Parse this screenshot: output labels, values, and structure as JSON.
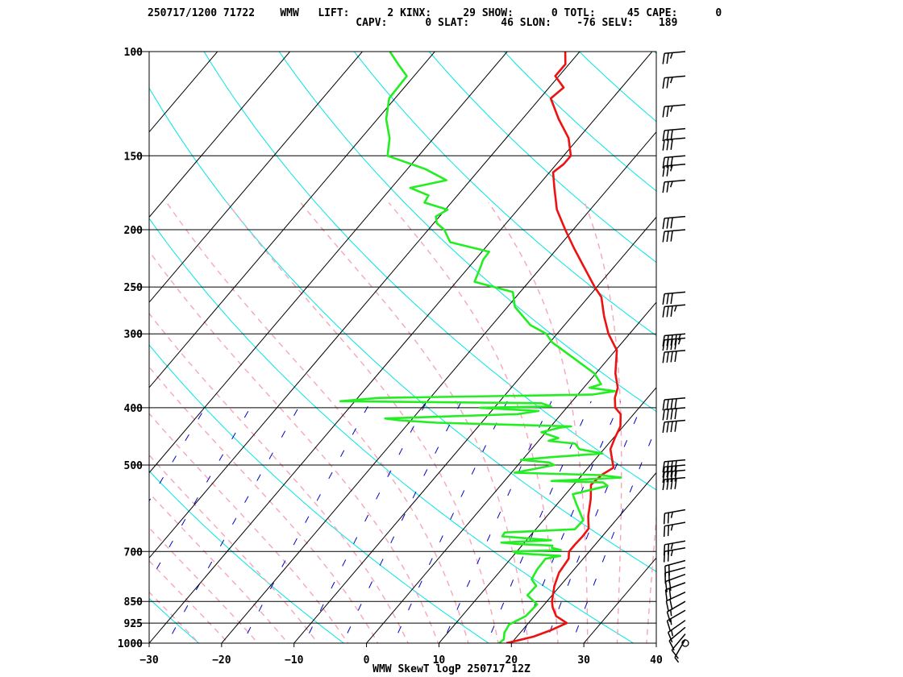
{
  "header": {
    "line1": "250717/1200 71722    WMW   LIFT:      2 KINX:     29 SHOW:      0 TOTL:     45 CAPE:      0",
    "line2": "                                 CAPV:      0 SLAT:     46 SLON:    -76 SELV:    189"
  },
  "colors": {
    "temperature": "#ee1111",
    "dewpoint": "#22ee22",
    "isotherm_skewed": "#000000",
    "dry_adiabat": "#00e5e5",
    "moist_adiabat": "#f5a6b8",
    "mixing_ratio": "#0000c8",
    "isobar": "#000000"
  },
  "chart_data": {
    "type": "line",
    "title": "WMW SkewT logP 250717 12Z",
    "xlabel": "",
    "ylabel": "",
    "x_ticks": [
      "-30",
      "-20",
      "-10",
      "0",
      "10",
      "20",
      "30",
      "40"
    ],
    "xlim": [
      -30,
      40
    ],
    "ylim_hPa": [
      1000,
      100
    ],
    "y_scale": "log",
    "pressure_levels": [
      "100",
      "150",
      "200",
      "250",
      "300",
      "400",
      "500",
      "700",
      "850",
      "925",
      "1000"
    ],
    "series": [
      {
        "key": "temperature",
        "points": [
          [
            1000,
            19.3
          ],
          [
            990,
            20.5
          ],
          [
            975,
            22.3
          ],
          [
            950,
            24.0
          ],
          [
            925,
            25.3
          ],
          [
            900,
            23.0
          ],
          [
            870,
            21.5
          ],
          [
            850,
            20.7
          ],
          [
            800,
            19.2
          ],
          [
            760,
            18.3
          ],
          [
            720,
            18.0
          ],
          [
            700,
            17.2
          ],
          [
            680,
            17.2
          ],
          [
            660,
            17.3
          ],
          [
            640,
            17.2
          ],
          [
            610,
            15.7
          ],
          [
            570,
            14.0
          ],
          [
            540,
            12.4
          ],
          [
            520,
            12.7
          ],
          [
            505,
            13.5
          ],
          [
            490,
            12.4
          ],
          [
            470,
            10.9
          ],
          [
            450,
            10.2
          ],
          [
            430,
            9.6
          ],
          [
            410,
            8.2
          ],
          [
            400,
            6.7
          ],
          [
            385,
            5.5
          ],
          [
            370,
            4.7
          ],
          [
            350,
            2.7
          ],
          [
            320,
            0.2
          ],
          [
            300,
            -2.9
          ],
          [
            280,
            -5.6
          ],
          [
            260,
            -8.2
          ],
          [
            250,
            -10.3
          ],
          [
            230,
            -14.4
          ],
          [
            215,
            -17.7
          ],
          [
            200,
            -21.1
          ],
          [
            185,
            -24.6
          ],
          [
            170,
            -27.5
          ],
          [
            160,
            -29.5
          ],
          [
            155,
            -29.0
          ],
          [
            150,
            -29.0
          ],
          [
            140,
            -31.4
          ],
          [
            130,
            -35.0
          ],
          [
            120,
            -38.5
          ],
          [
            115,
            -38.0
          ],
          [
            110,
            -40.5
          ],
          [
            105,
            -40.5
          ],
          [
            100,
            -42.0
          ]
        ]
      },
      {
        "key": "dewpoint",
        "points": [
          [
            1000,
            18.3
          ],
          [
            985,
            18.5
          ],
          [
            960,
            17.8
          ],
          [
            930,
            17.5
          ],
          [
            900,
            18.8
          ],
          [
            860,
            19.0
          ],
          [
            830,
            16.6
          ],
          [
            800,
            16.7
          ],
          [
            780,
            15.3
          ],
          [
            750,
            14.9
          ],
          [
            720,
            14.8
          ],
          [
            712,
            16.5
          ],
          [
            705,
            10.3
          ],
          [
            700,
            9.5
          ],
          [
            696,
            15.9
          ],
          [
            690,
            14.4
          ],
          [
            684,
            14.2
          ],
          [
            680,
            9.4
          ],
          [
            676,
            6.8
          ],
          [
            670,
            13.4
          ],
          [
            660,
            6.2
          ],
          [
            650,
            6.1
          ],
          [
            642,
            15.4
          ],
          [
            620,
            15.5
          ],
          [
            580,
            12.5
          ],
          [
            560,
            11.0
          ],
          [
            542,
            14.8
          ],
          [
            535,
            13.8
          ],
          [
            532,
            6.5
          ],
          [
            528,
            11.7
          ],
          [
            525,
            15.7
          ],
          [
            520,
            12.5
          ],
          [
            515,
            0.4
          ],
          [
            508,
            2.6
          ],
          [
            500,
            5.0
          ],
          [
            495,
            4.0
          ],
          [
            490,
            -0.2
          ],
          [
            485,
            3.5
          ],
          [
            478,
            10.3
          ],
          [
            470,
            6.6
          ],
          [
            460,
            5.4
          ],
          [
            455,
            1.4
          ],
          [
            450,
            2.4
          ],
          [
            440,
            -0.6
          ],
          [
            432,
            1.5
          ],
          [
            430,
            2.8
          ],
          [
            424,
            -16.2
          ],
          [
            420,
            -21.6
          ],
          [
            417,
            -23.8
          ],
          [
            410,
            -6.0
          ],
          [
            405,
            -3.5
          ],
          [
            400,
            -12.0
          ],
          [
            398,
            -2.3
          ],
          [
            396,
            -3.0
          ],
          [
            393,
            -4.0
          ],
          [
            390,
            -32.0
          ],
          [
            385,
            -27.0
          ],
          [
            380,
            2.0
          ],
          [
            375,
            4.7
          ],
          [
            370,
            0.8
          ],
          [
            365,
            2.0
          ],
          [
            350,
            -0.2
          ],
          [
            330,
            -4.8
          ],
          [
            310,
            -9.7
          ],
          [
            300,
            -11.5
          ],
          [
            290,
            -14.7
          ],
          [
            270,
            -19.0
          ],
          [
            255,
            -21.0
          ],
          [
            245,
            -27.5
          ],
          [
            230,
            -28.5
          ],
          [
            225,
            -28.9
          ],
          [
            218,
            -29.0
          ],
          [
            210,
            -35.5
          ],
          [
            200,
            -37.8
          ],
          [
            195,
            -39.6
          ],
          [
            190,
            -40.5
          ],
          [
            185,
            -39.7
          ],
          [
            180,
            -43.7
          ],
          [
            175,
            -44.0
          ],
          [
            170,
            -47.4
          ],
          [
            165,
            -43.3
          ],
          [
            158,
            -47.5
          ],
          [
            150,
            -54.3
          ],
          [
            140,
            -56.1
          ],
          [
            130,
            -58.8
          ],
          [
            120,
            -60.8
          ],
          [
            110,
            -61.0
          ],
          [
            105,
            -63.6
          ],
          [
            100,
            -66.2
          ]
        ]
      }
    ]
  },
  "wind_barbs": [
    {
      "p": 1000,
      "dir": 200,
      "spd": 3
    },
    {
      "p": 985,
      "dir": 210,
      "spd": 6
    },
    {
      "p": 965,
      "dir": 220,
      "spd": 8
    },
    {
      "p": 940,
      "dir": 230,
      "spd": 12
    },
    {
      "p": 915,
      "dir": 235,
      "spd": 14
    },
    {
      "p": 880,
      "dir": 240,
      "spd": 15
    },
    {
      "p": 850,
      "dir": 240,
      "spd": 16
    },
    {
      "p": 820,
      "dir": 245,
      "spd": 18
    },
    {
      "p": 790,
      "dir": 250,
      "spd": 20
    },
    {
      "p": 765,
      "dir": 250,
      "spd": 20
    },
    {
      "p": 745,
      "dir": 255,
      "spd": 20
    },
    {
      "p": 725,
      "dir": 255,
      "spd": 22
    },
    {
      "p": 690,
      "dir": 260,
      "spd": 25
    },
    {
      "p": 672,
      "dir": 260,
      "spd": 25
    },
    {
      "p": 625,
      "dir": 260,
      "spd": 25
    },
    {
      "p": 595,
      "dir": 260,
      "spd": 25
    },
    {
      "p": 525,
      "dir": 265,
      "spd": 40
    },
    {
      "p": 510,
      "dir": 265,
      "spd": 40
    },
    {
      "p": 500,
      "dir": 265,
      "spd": 40
    },
    {
      "p": 490,
      "dir": 265,
      "spd": 40
    },
    {
      "p": 420,
      "dir": 265,
      "spd": 40
    },
    {
      "p": 400,
      "dir": 265,
      "spd": 40
    },
    {
      "p": 385,
      "dir": 265,
      "spd": 40
    },
    {
      "p": 320,
      "dir": 265,
      "spd": 40
    },
    {
      "p": 305,
      "dir": 265,
      "spd": 45
    },
    {
      "p": 300,
      "dir": 265,
      "spd": 45
    },
    {
      "p": 268,
      "dir": 265,
      "spd": 35
    },
    {
      "p": 255,
      "dir": 265,
      "spd": 30
    },
    {
      "p": 200,
      "dir": 265,
      "spd": 30
    },
    {
      "p": 190,
      "dir": 265,
      "spd": 30
    },
    {
      "p": 165,
      "dir": 265,
      "spd": 25
    },
    {
      "p": 155,
      "dir": 265,
      "spd": 25
    },
    {
      "p": 150,
      "dir": 265,
      "spd": 30
    },
    {
      "p": 140,
      "dir": 265,
      "spd": 30
    },
    {
      "p": 135,
      "dir": 265,
      "spd": 30
    },
    {
      "p": 123,
      "dir": 265,
      "spd": 25
    },
    {
      "p": 110,
      "dir": 265,
      "spd": 25
    },
    {
      "p": 100,
      "dir": 265,
      "spd": 25
    }
  ]
}
